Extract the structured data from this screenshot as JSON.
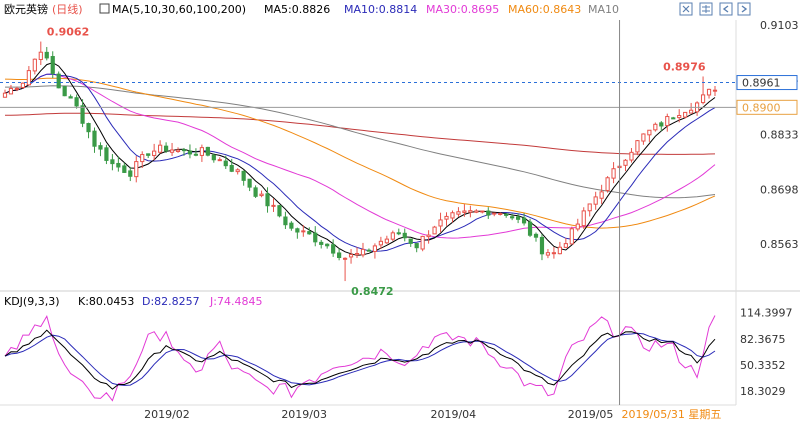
{
  "header": {
    "pair": "欧元英镑",
    "period": "(日线)",
    "ma_spec": "MA(5,10,30,60,100,200)",
    "ma5": "MA5:0.8826",
    "ma10": "MA10:0.8814",
    "ma30": "MA30:0.8695",
    "ma60": "MA60:0.8643",
    "ma10b": "MA10"
  },
  "toolbar": {
    "icons": [
      "expand-icon",
      "grid-icon",
      "chevron-left-icon",
      "chevron-right-icon"
    ]
  },
  "kdj_header": {
    "spec": "KDJ(9,3,3)",
    "k": "K:80.0453",
    "d": "D:82.8257",
    "j": "J:74.4845"
  },
  "colors": {
    "up": "#e8534b",
    "down": "#3a9a47",
    "ma5": "#000000",
    "ma10": "#2b2bb8",
    "ma30": "#e23ad6",
    "ma60": "#f08a12",
    "ma100": "#808080",
    "ma200": "#c23a3a",
    "k": "#000000",
    "d": "#2b2bb8",
    "j": "#e23ad6",
    "accent": "#e8534b"
  },
  "chart_data": [
    {
      "type": "candlestick",
      "title": "欧元英镑 (日线)",
      "ylim": [
        0.845,
        0.912
      ],
      "y_ticks": [
        "0.9103",
        "0.8968",
        "0.8833",
        "0.8698",
        "0.8563"
      ],
      "tick_values": [
        0.9103,
        0.8968,
        0.8833,
        0.8698,
        0.8563
      ],
      "x_tick_labels": [
        "2019/02",
        "2019/03",
        "2019/04",
        "2019/05"
      ],
      "cursor_label": "2019/05/31 星期五",
      "annotations": [
        {
          "text": "0.9062",
          "type": "high"
        },
        {
          "text": "0.8472",
          "type": "low"
        },
        {
          "text": "0.8976",
          "type": "high"
        }
      ],
      "price_tags": [
        "0.8961",
        "0.8900"
      ],
      "ma_lines": [
        "MA5",
        "MA10",
        "MA30",
        "MA60",
        "MA100",
        "MA200"
      ]
    },
    {
      "type": "line",
      "title": "KDJ(9,3,3)",
      "ylim": [
        5,
        120
      ],
      "y_ticks": [
        "114.3997",
        "82.3675",
        "50.3352",
        "18.3029"
      ],
      "tick_values": [
        114.3997,
        82.3675,
        50.3352,
        18.3029
      ],
      "series": [
        {
          "name": "K"
        },
        {
          "name": "D"
        },
        {
          "name": "J"
        }
      ]
    }
  ]
}
